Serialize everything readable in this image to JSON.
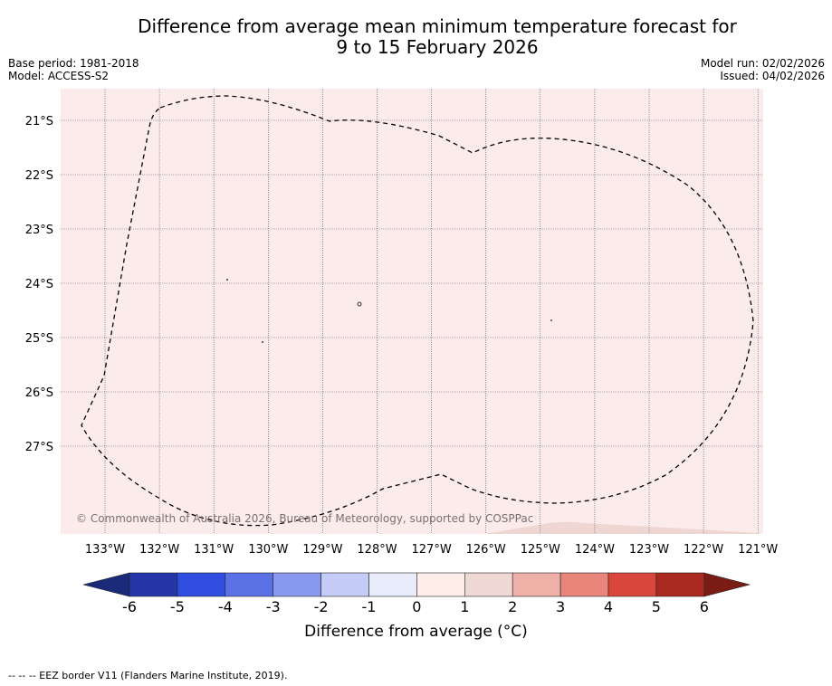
{
  "title": {
    "line1": "Difference from average mean minimum temperature forecast for",
    "line2": "9 to 15 February 2026"
  },
  "meta": {
    "base_period": "Base period: 1981-2018",
    "model": "Model: ACCESS-S2",
    "model_run": "Model run: 02/02/2026",
    "issued": "Issued: 04/02/2026"
  },
  "map": {
    "lat_labels": [
      "21°S",
      "22°S",
      "23°S",
      "24°S",
      "25°S",
      "26°S",
      "27°S"
    ],
    "lon_labels": [
      "133°W",
      "132°W",
      "131°W",
      "130°W",
      "129°W",
      "128°W",
      "127°W",
      "126°W",
      "125°W",
      "124°W",
      "123°W",
      "122°W",
      "121°W"
    ],
    "copyright": "© Commonwealth of Australia 2026, Bureau of Meteorology, supported by COSPPac",
    "colors": {
      "background_fill": "#fbeceb",
      "warm_patch_fill": "#efd6d3",
      "grid": "#6a5a78",
      "eez_border": "#000000"
    }
  },
  "colorbar": {
    "title": "Difference from average (°C)",
    "ticks": [
      "-6",
      "-5",
      "-4",
      "-3",
      "-2",
      "-1",
      "0",
      "1",
      "2",
      "3",
      "4",
      "5",
      "6"
    ],
    "colors": {
      "under": "#1b2a78",
      "over": "#7a1c14",
      "bins": [
        "#2436a8",
        "#2f4ee0",
        "#5a72e6",
        "#8899ee",
        "#c3cbf6",
        "#e9ecfb",
        "#fdeeea",
        "#f0d8d4",
        "#efb0a8",
        "#e8867c",
        "#d9463c",
        "#ab2a20"
      ]
    }
  },
  "footer": {
    "legend": "--  --  -- EEZ border V11 (Flanders Marine Institute, 2019)."
  }
}
